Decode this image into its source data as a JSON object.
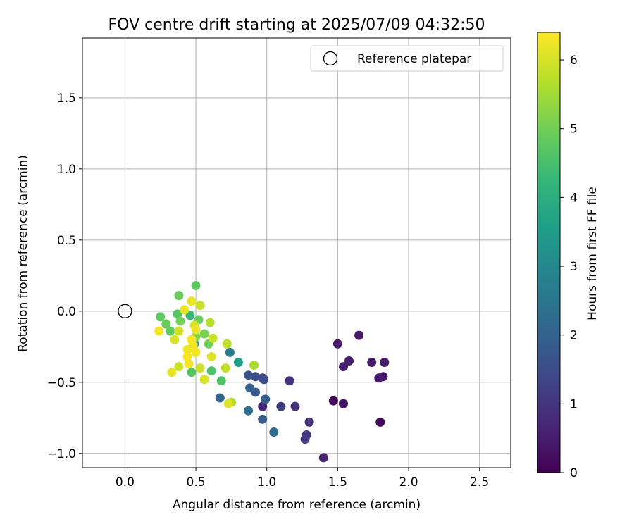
{
  "chart_data": {
    "type": "scatter",
    "title": "FOV centre drift starting at 2025/07/09 04:32:50",
    "xlabel": "Angular distance from reference (arcmin)",
    "ylabel": "Rotation from reference (arcmin)",
    "xlim": [
      -0.3,
      2.72
    ],
    "ylim": [
      -1.1,
      1.92
    ],
    "xticks": [
      0.0,
      0.5,
      1.0,
      1.5,
      2.0,
      2.5
    ],
    "xtick_labels": [
      "0.0",
      "0.5",
      "1.0",
      "1.5",
      "2.0",
      "2.5"
    ],
    "yticks": [
      -1.0,
      -0.5,
      0.0,
      0.5,
      1.0,
      1.5
    ],
    "ytick_labels": [
      "−1.0",
      "−0.5",
      "0.0",
      "0.5",
      "1.0",
      "1.5"
    ],
    "grid": true,
    "legend": {
      "placement": "top-right",
      "label": "Reference platepar",
      "marker": "open-circle"
    },
    "reference_point": {
      "x": 0.0,
      "y": 0.0
    },
    "colorbar": {
      "label": "Hours from first FF file",
      "range": [
        0,
        6.4
      ],
      "ticks": [
        0,
        1,
        2,
        3,
        4,
        5,
        6
      ],
      "tick_labels": [
        "0",
        "1",
        "2",
        "3",
        "4",
        "5",
        "6"
      ],
      "colormap": "viridis",
      "stops": [
        "#440154",
        "#482878",
        "#3e4989",
        "#31688e",
        "#26828e",
        "#1f9e89",
        "#35b779",
        "#6ece58",
        "#b5de2b",
        "#fde725"
      ]
    },
    "points": [
      {
        "x": 1.47,
        "y": -0.63,
        "h": 0.05
      },
      {
        "x": 1.8,
        "y": -0.78,
        "h": 0.1
      },
      {
        "x": 1.54,
        "y": -0.65,
        "h": 0.35
      },
      {
        "x": 1.5,
        "y": -0.23,
        "h": 0.45
      },
      {
        "x": 1.65,
        "y": -0.17,
        "h": 0.45
      },
      {
        "x": 1.74,
        "y": -0.36,
        "h": 0.45
      },
      {
        "x": 1.83,
        "y": -0.36,
        "h": 0.45
      },
      {
        "x": 1.79,
        "y": -0.47,
        "h": 0.45
      },
      {
        "x": 1.82,
        "y": -0.46,
        "h": 0.45
      },
      {
        "x": 1.58,
        "y": -0.35,
        "h": 0.55
      },
      {
        "x": 1.54,
        "y": -0.39,
        "h": 0.55
      },
      {
        "x": 1.4,
        "y": -1.03,
        "h": 0.65
      },
      {
        "x": 0.97,
        "y": -0.67,
        "h": 0.7
      },
      {
        "x": 1.16,
        "y": -0.49,
        "h": 0.9
      },
      {
        "x": 1.2,
        "y": -0.67,
        "h": 0.9
      },
      {
        "x": 1.3,
        "y": -0.78,
        "h": 0.95
      },
      {
        "x": 1.28,
        "y": -0.87,
        "h": 1.0
      },
      {
        "x": 1.27,
        "y": -0.9,
        "h": 1.1
      },
      {
        "x": 1.1,
        "y": -0.67,
        "h": 1.2
      },
      {
        "x": 0.97,
        "y": -0.47,
        "h": 1.3
      },
      {
        "x": 0.98,
        "y": -0.48,
        "h": 1.5
      },
      {
        "x": 0.92,
        "y": -0.46,
        "h": 1.55
      },
      {
        "x": 0.87,
        "y": -0.45,
        "h": 1.7
      },
      {
        "x": 0.92,
        "y": -0.57,
        "h": 1.8
      },
      {
        "x": 0.99,
        "y": -0.62,
        "h": 1.85
      },
      {
        "x": 0.97,
        "y": -0.76,
        "h": 1.9
      },
      {
        "x": 0.88,
        "y": -0.54,
        "h": 1.95
      },
      {
        "x": 0.67,
        "y": -0.61,
        "h": 2.0
      },
      {
        "x": 1.05,
        "y": -0.85,
        "h": 2.2
      },
      {
        "x": 0.87,
        "y": -0.7,
        "h": 2.3
      },
      {
        "x": 0.74,
        "y": -0.29,
        "h": 2.6
      },
      {
        "x": 0.8,
        "y": -0.36,
        "h": 3.6
      },
      {
        "x": 0.49,
        "y": -0.23,
        "h": 3.8
      },
      {
        "x": 0.46,
        "y": -0.03,
        "h": 4.3
      },
      {
        "x": 0.61,
        "y": -0.42,
        "h": 4.6
      },
      {
        "x": 0.68,
        "y": -0.49,
        "h": 4.6
      },
      {
        "x": 0.47,
        "y": -0.43,
        "h": 4.7
      },
      {
        "x": 0.37,
        "y": -0.02,
        "h": 4.7
      },
      {
        "x": 0.5,
        "y": 0.18,
        "h": 4.8
      },
      {
        "x": 0.32,
        "y": -0.14,
        "h": 4.8
      },
      {
        "x": 0.25,
        "y": -0.04,
        "h": 4.8
      },
      {
        "x": 0.29,
        "y": -0.09,
        "h": 4.9
      },
      {
        "x": 0.38,
        "y": 0.11,
        "h": 4.9
      },
      {
        "x": 0.52,
        "y": -0.06,
        "h": 4.9
      },
      {
        "x": 0.59,
        "y": -0.23,
        "h": 5.0
      },
      {
        "x": 0.39,
        "y": -0.07,
        "h": 5.0
      },
      {
        "x": 0.56,
        "y": -0.16,
        "h": 5.1
      },
      {
        "x": 0.5,
        "y": -0.18,
        "h": 5.2
      },
      {
        "x": 0.75,
        "y": -0.64,
        "h": 5.6
      },
      {
        "x": 0.91,
        "y": -0.38,
        "h": 5.6
      },
      {
        "x": 0.6,
        "y": -0.08,
        "h": 5.7
      },
      {
        "x": 0.72,
        "y": -0.23,
        "h": 5.8
      },
      {
        "x": 0.71,
        "y": -0.4,
        "h": 5.8
      },
      {
        "x": 0.53,
        "y": 0.04,
        "h": 5.9
      },
      {
        "x": 0.62,
        "y": -0.19,
        "h": 5.9
      },
      {
        "x": 0.38,
        "y": -0.39,
        "h": 5.9
      },
      {
        "x": 0.53,
        "y": -0.4,
        "h": 5.9
      },
      {
        "x": 0.38,
        "y": -0.14,
        "h": 5.95
      },
      {
        "x": 0.35,
        "y": -0.2,
        "h": 6.0
      },
      {
        "x": 0.49,
        "y": -0.1,
        "h": 6.0
      },
      {
        "x": 0.56,
        "y": -0.48,
        "h": 6.05
      },
      {
        "x": 0.73,
        "y": -0.65,
        "h": 6.1
      },
      {
        "x": 0.61,
        "y": -0.32,
        "h": 6.1
      },
      {
        "x": 0.5,
        "y": -0.13,
        "h": 6.2
      },
      {
        "x": 0.42,
        "y": 0.01,
        "h": 6.2
      },
      {
        "x": 0.47,
        "y": 0.07,
        "h": 6.2
      },
      {
        "x": 0.33,
        "y": -0.43,
        "h": 6.2
      },
      {
        "x": 0.44,
        "y": -0.27,
        "h": 6.25
      },
      {
        "x": 0.48,
        "y": -0.24,
        "h": 6.25
      },
      {
        "x": 0.5,
        "y": -0.29,
        "h": 6.3
      },
      {
        "x": 0.45,
        "y": -0.37,
        "h": 6.3
      },
      {
        "x": 0.24,
        "y": -0.14,
        "h": 6.3
      },
      {
        "x": 0.47,
        "y": -0.2,
        "h": 6.35
      },
      {
        "x": 0.44,
        "y": -0.32,
        "h": 6.35
      }
    ]
  }
}
